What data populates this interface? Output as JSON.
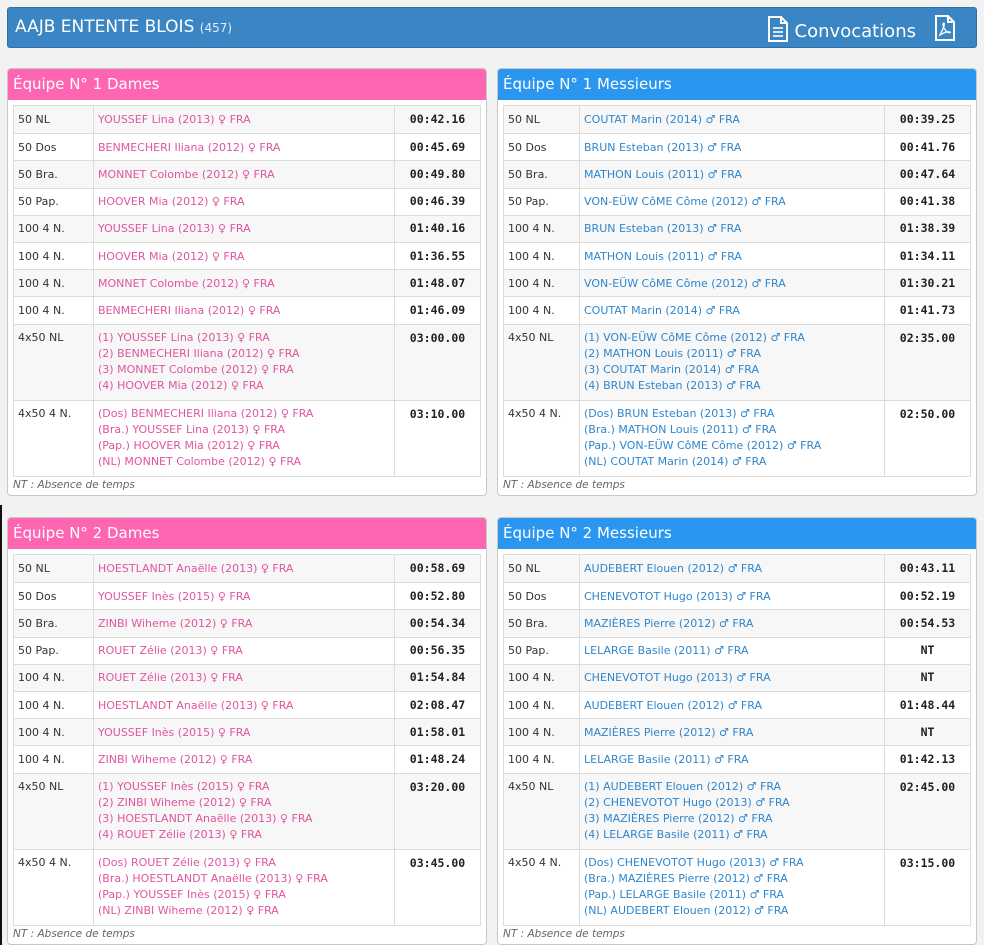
{
  "header": {
    "club": "AAJB ENTENTE BLOIS",
    "count": "(457)",
    "convocations_label": "Convocations",
    "colors": {
      "bar": "#3a85c3",
      "pink": "#ff66b2",
      "blue": "#2a96f0"
    }
  },
  "footnote": "NT : Absence de temps",
  "panels": [
    {
      "title": "Équipe N° 1 Dames",
      "rows": [
        {
          "event": "50 NL",
          "names": [
            "YOUSSEF Lina (2013) ♀ FRA"
          ],
          "time": "00:42.16"
        },
        {
          "event": "50 Dos",
          "names": [
            "BENMECHERI Iliana (2012) ♀ FRA"
          ],
          "time": "00:45.69"
        },
        {
          "event": "50 Bra.",
          "names": [
            "MONNET Colombe (2012) ♀ FRA"
          ],
          "time": "00:49.80"
        },
        {
          "event": "50 Pap.",
          "names": [
            "HOOVER Mia (2012) ♀ FRA"
          ],
          "time": "00:46.39"
        },
        {
          "event": "100 4 N.",
          "names": [
            "YOUSSEF Lina (2013) ♀ FRA"
          ],
          "time": "01:40.16"
        },
        {
          "event": "100 4 N.",
          "names": [
            "HOOVER Mia (2012) ♀ FRA"
          ],
          "time": "01:36.55"
        },
        {
          "event": "100 4 N.",
          "names": [
            "MONNET Colombe (2012) ♀ FRA"
          ],
          "time": "01:48.07"
        },
        {
          "event": "100 4 N.",
          "names": [
            "BENMECHERI Iliana (2012) ♀ FRA"
          ],
          "time": "01:46.09"
        },
        {
          "event": "4x50 NL",
          "names": [
            "(1) YOUSSEF Lina (2013) ♀ FRA",
            "(2) BENMECHERI Iliana (2012) ♀ FRA",
            "(3) MONNET Colombe (2012) ♀ FRA",
            "(4) HOOVER Mia (2012) ♀ FRA"
          ],
          "time": "03:00.00"
        },
        {
          "event": "4x50 4 N.",
          "names": [
            "(Dos) BENMECHERI Iliana (2012) ♀ FRA",
            "(Bra.) YOUSSEF Lina (2013) ♀ FRA",
            "(Pap.) HOOVER Mia (2012) ♀ FRA",
            "(NL) MONNET Colombe (2012) ♀ FRA"
          ],
          "time": "03:10.00"
        }
      ]
    },
    {
      "title": "Équipe N° 1 Messieurs",
      "rows": [
        {
          "event": "50 NL",
          "names": [
            "COUTAT Marin (2014) ♂ FRA"
          ],
          "time": "00:39.25"
        },
        {
          "event": "50 Dos",
          "names": [
            "BRUN Esteban (2013) ♂ FRA"
          ],
          "time": "00:41.76"
        },
        {
          "event": "50 Bra.",
          "names": [
            "MATHON Louis (2011) ♂ FRA"
          ],
          "time": "00:47.64"
        },
        {
          "event": "50 Pap.",
          "names": [
            "VON-EÜW CôME Côme (2012) ♂ FRA"
          ],
          "time": "00:41.38"
        },
        {
          "event": "100 4 N.",
          "names": [
            "BRUN Esteban (2013) ♂ FRA"
          ],
          "time": "01:38.39"
        },
        {
          "event": "100 4 N.",
          "names": [
            "MATHON Louis (2011) ♂ FRA"
          ],
          "time": "01:34.11"
        },
        {
          "event": "100 4 N.",
          "names": [
            "VON-EÜW CôME Côme (2012) ♂ FRA"
          ],
          "time": "01:30.21"
        },
        {
          "event": "100 4 N.",
          "names": [
            "COUTAT Marin (2014) ♂ FRA"
          ],
          "time": "01:41.73"
        },
        {
          "event": "4x50 NL",
          "names": [
            "(1) VON-EÜW CôME Côme (2012) ♂ FRA",
            "(2) MATHON Louis (2011) ♂ FRA",
            "(3) COUTAT Marin (2014) ♂ FRA",
            "(4) BRUN Esteban (2013) ♂ FRA"
          ],
          "time": "02:35.00"
        },
        {
          "event": "4x50 4 N.",
          "names": [
            "(Dos) BRUN Esteban (2013) ♂ FRA",
            "(Bra.) MATHON Louis (2011) ♂ FRA",
            "(Pap.) VON-EÜW CôME Côme (2012) ♂ FRA",
            "(NL) COUTAT Marin (2014) ♂ FRA"
          ],
          "time": "02:50.00"
        }
      ]
    },
    {
      "title": "Équipe N° 2 Dames",
      "rows": [
        {
          "event": "50 NL",
          "names": [
            "HOESTLANDT Anaëlle (2013) ♀ FRA"
          ],
          "time": "00:58.69"
        },
        {
          "event": "50 Dos",
          "names": [
            "YOUSSEF Inès (2015) ♀ FRA"
          ],
          "time": "00:52.80"
        },
        {
          "event": "50 Bra.",
          "names": [
            "ZINBI Wiheme (2012) ♀ FRA"
          ],
          "time": "00:54.34"
        },
        {
          "event": "50 Pap.",
          "names": [
            "ROUET Zélie (2013) ♀ FRA"
          ],
          "time": "00:56.35"
        },
        {
          "event": "100 4 N.",
          "names": [
            "ROUET Zélie (2013) ♀ FRA"
          ],
          "time": "01:54.84"
        },
        {
          "event": "100 4 N.",
          "names": [
            "HOESTLANDT Anaëlle (2013) ♀ FRA"
          ],
          "time": "02:08.47"
        },
        {
          "event": "100 4 N.",
          "names": [
            "YOUSSEF Inès (2015) ♀ FRA"
          ],
          "time": "01:58.01"
        },
        {
          "event": "100 4 N.",
          "names": [
            "ZINBI Wiheme (2012) ♀ FRA"
          ],
          "time": "01:48.24"
        },
        {
          "event": "4x50 NL",
          "names": [
            "(1) YOUSSEF Inès (2015) ♀ FRA",
            "(2) ZINBI Wiheme (2012) ♀ FRA",
            "(3) HOESTLANDT Anaëlle (2013) ♀ FRA",
            "(4) ROUET Zélie (2013) ♀ FRA"
          ],
          "time": "03:20.00"
        },
        {
          "event": "4x50 4 N.",
          "names": [
            "(Dos) ROUET Zélie (2013) ♀ FRA",
            "(Bra.) HOESTLANDT Anaëlle (2013) ♀ FRA",
            "(Pap.) YOUSSEF Inès (2015) ♀ FRA",
            "(NL) ZINBI Wiheme (2012) ♀ FRA"
          ],
          "time": "03:45.00"
        }
      ]
    },
    {
      "title": "Équipe N° 2 Messieurs",
      "rows": [
        {
          "event": "50 NL",
          "names": [
            "AUDEBERT Elouen (2012) ♂ FRA"
          ],
          "time": "00:43.11"
        },
        {
          "event": "50 Dos",
          "names": [
            "CHENEVOTOT Hugo (2013) ♂ FRA"
          ],
          "time": "00:52.19"
        },
        {
          "event": "50 Bra.",
          "names": [
            "MAZIÈRES Pierre (2012) ♂ FRA"
          ],
          "time": "00:54.53"
        },
        {
          "event": "50 Pap.",
          "names": [
            "LELARGE Basile (2011) ♂ FRA"
          ],
          "time": "NT"
        },
        {
          "event": "100 4 N.",
          "names": [
            "CHENEVOTOT Hugo (2013) ♂ FRA"
          ],
          "time": "NT"
        },
        {
          "event": "100 4 N.",
          "names": [
            "AUDEBERT Elouen (2012) ♂ FRA"
          ],
          "time": "01:48.44"
        },
        {
          "event": "100 4 N.",
          "names": [
            "MAZIÈRES Pierre (2012) ♂ FRA"
          ],
          "time": "NT"
        },
        {
          "event": "100 4 N.",
          "names": [
            "LELARGE Basile (2011) ♂ FRA"
          ],
          "time": "01:42.13"
        },
        {
          "event": "4x50 NL",
          "names": [
            "(1) AUDEBERT Elouen (2012) ♂ FRA",
            "(2) CHENEVOTOT Hugo (2013) ♂ FRA",
            "(3) MAZIÈRES Pierre (2012) ♂ FRA",
            "(4) LELARGE Basile (2011) ♂ FRA"
          ],
          "time": "02:45.00"
        },
        {
          "event": "4x50 4 N.",
          "names": [
            "(Dos) CHENEVOTOT Hugo (2013) ♂ FRA",
            "(Bra.) MAZIÈRES Pierre (2012) ♂ FRA",
            "(Pap.) LELARGE Basile (2011) ♂ FRA",
            "(NL) AUDEBERT Elouen (2012) ♂ FRA"
          ],
          "time": "03:15.00"
        }
      ]
    }
  ]
}
